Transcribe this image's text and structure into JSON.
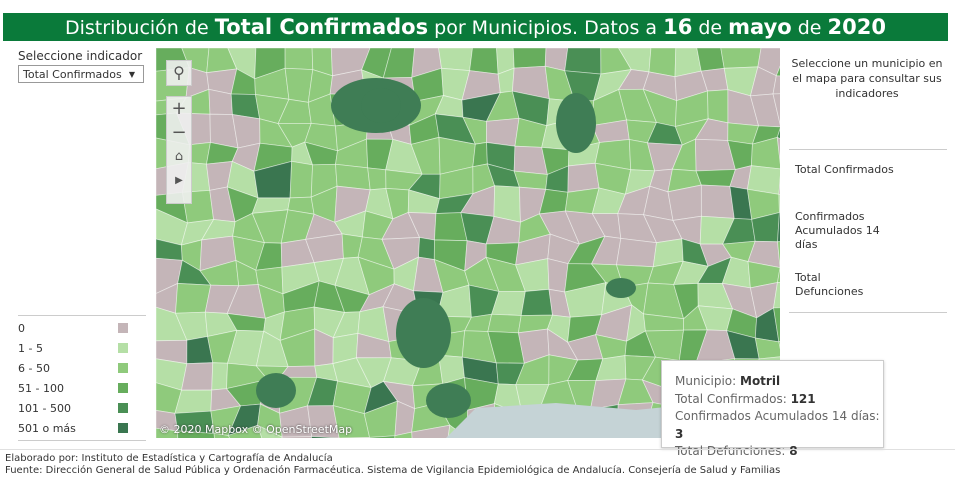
{
  "header": {
    "pre": "Distribución de",
    "indicator": "Total Confirmados",
    "mid": "por Municipios. Datos a",
    "day": "16",
    "de1": "de",
    "month": "mayo",
    "de2": "de",
    "year": "2020"
  },
  "selector": {
    "label": "Seleccione indicador",
    "value": "Total Confirmados"
  },
  "map": {
    "credits": "© 2020 Mapbox © OpenStreetMap",
    "controls": [
      "search-icon",
      "zoom-in-icon",
      "zoom-out-icon",
      "home-icon",
      "play-icon"
    ]
  },
  "legend": [
    {
      "label": "0",
      "color": "#c4b5b8"
    },
    {
      "label": "1 - 5",
      "color": "#b5dfa6"
    },
    {
      "label": "6 - 50",
      "color": "#8fca7c"
    },
    {
      "label": "51 - 100",
      "color": "#67ad5d"
    },
    {
      "label": "101 - 500",
      "color": "#4a8f55"
    },
    {
      "label": "501 o más",
      "color": "#3a7650"
    }
  ],
  "right": {
    "message": "Seleccione un municipio en el mapa para consultar sus indicadores",
    "indicators": [
      "Total Confirmados",
      "Confirmados Acumulados 14 días",
      "Total Defunciones"
    ]
  },
  "tooltip": {
    "municipio_label": "Municipio:",
    "municipio": "Motril",
    "confirmados_label": "Total Confirmados:",
    "confirmados": "121",
    "acum_label": "Confirmados Acumulados 14 días:",
    "acum": "3",
    "def_label": "Total Defunciones:",
    "def": "8"
  },
  "footer": {
    "line1": "Elaborado por: Instituto de Estadística y Cartografía de Andalucía",
    "line2": "Fuente: Dirección General de Salud Pública y Ordenación Farmacéutica. Sistema de Vigilancia Epidemiológica de Andalucía. Consejería de Salud y Familias"
  }
}
